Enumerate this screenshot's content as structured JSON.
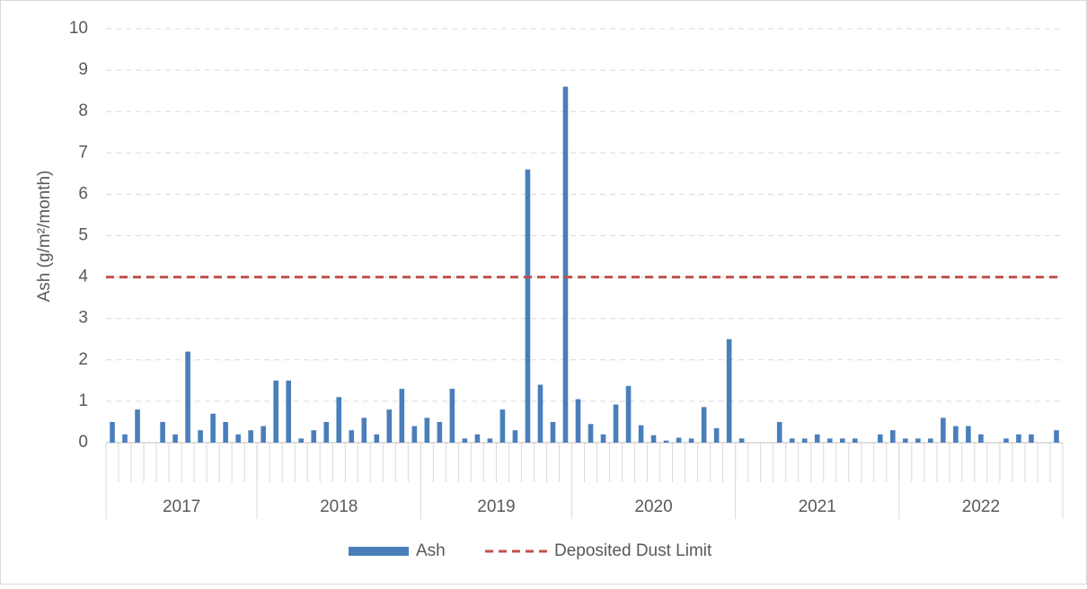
{
  "chart_data": {
    "type": "bar",
    "y_axis_label": "Ash (g/m²/month)",
    "categories": [
      null,
      null,
      null,
      null,
      null,
      null,
      null,
      null,
      null,
      null,
      null,
      null,
      null,
      null,
      null,
      null,
      null,
      null,
      null,
      null,
      null,
      null,
      null,
      null,
      null,
      null,
      null,
      null,
      null,
      null,
      null,
      null,
      null,
      null,
      null,
      null,
      null,
      null,
      null,
      null,
      null,
      null,
      null,
      null,
      null,
      null,
      null,
      null,
      null,
      null,
      null,
      null,
      null,
      null,
      null,
      null,
      null,
      null,
      null,
      null,
      null,
      null,
      null,
      null,
      null,
      null,
      null,
      null,
      null,
      null,
      null,
      null,
      null,
      null,
      null,
      null
    ],
    "groups": [
      {
        "label": "2017",
        "size": 12
      },
      {
        "label": "2018",
        "size": 13
      },
      {
        "label": "2019",
        "size": 12
      },
      {
        "label": "2020",
        "size": 13
      },
      {
        "label": "2021",
        "size": 13
      },
      {
        "label": "2022",
        "size": 13
      }
    ],
    "series": [
      {
        "name": "Ash",
        "color": "#4a7ebb",
        "values": [
          0.5,
          0.2,
          0.8,
          null,
          0.5,
          0.2,
          2.2,
          0.3,
          0.7,
          0.5,
          0.2,
          0.3,
          0.4,
          1.5,
          1.5,
          0.1,
          0.3,
          0.5,
          1.1,
          0.3,
          0.6,
          0.2,
          0.8,
          1.3,
          0.4,
          0.6,
          0.5,
          1.3,
          0.1,
          0.2,
          0.1,
          0.8,
          0.3,
          6.6,
          1.4,
          0.5,
          8.6,
          1.05,
          0.45,
          0.2,
          0.92,
          1.37,
          0.42,
          0.18,
          0.05,
          0.12,
          0.1,
          0.86,
          0.35,
          2.5,
          0.1,
          null,
          null,
          0.5,
          0.1,
          0.1,
          0.2,
          0.1,
          0.1,
          0.1,
          null,
          0.2,
          0.3,
          0.1,
          0.1,
          0.1,
          0.6,
          0.4,
          0.4,
          0.2,
          null,
          0.1,
          0.2,
          0.2,
          null,
          0.3
        ]
      }
    ],
    "limit": {
      "name": "Deposited Dust Limit",
      "value": 4,
      "color": "#c0504d"
    },
    "ylim": [
      0,
      10
    ],
    "yticks": [
      0,
      1,
      2,
      3,
      4,
      5,
      6,
      7,
      8,
      9,
      10
    ],
    "grid": true
  }
}
